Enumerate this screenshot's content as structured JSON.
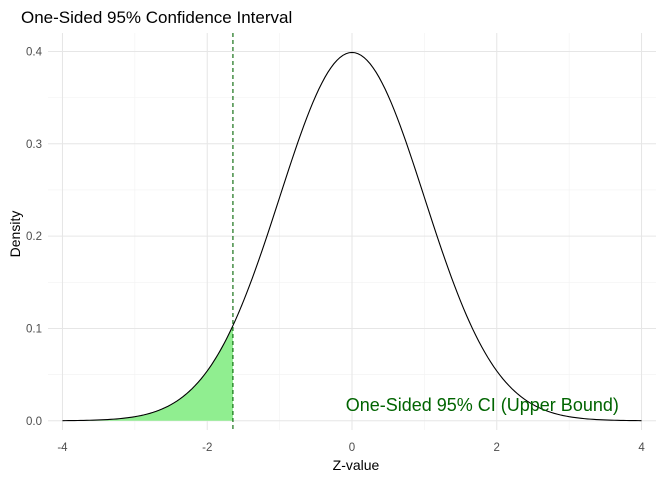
{
  "chart_data": {
    "type": "area",
    "title": "One-Sided 95% Confidence Interval",
    "xlabel": "Z-value",
    "ylabel": "Density",
    "xlim": [
      -4.2,
      4.2
    ],
    "ylim": [
      -0.01,
      0.42
    ],
    "x_ticks": [
      -4,
      -2,
      0,
      2,
      4
    ],
    "y_ticks": [
      0.0,
      0.1,
      0.2,
      0.3,
      0.4
    ],
    "x_tick_labels": [
      "-4",
      "-2",
      "0",
      "2",
      "4"
    ],
    "y_tick_labels": [
      "0.0",
      "0.1",
      "0.2",
      "0.3",
      "0.4"
    ],
    "grid": true,
    "curve": {
      "type": "line",
      "color": "#000000",
      "x": [
        -4.0,
        -3.5,
        -3.0,
        -2.5,
        -2.0,
        -1.645,
        -1.5,
        -1.0,
        -0.5,
        0.0,
        0.5,
        1.0,
        1.5,
        2.0,
        2.5,
        3.0,
        3.5,
        4.0
      ],
      "values": [
        0.0001,
        0.0009,
        0.0044,
        0.0175,
        0.054,
        0.1031,
        0.1295,
        0.242,
        0.3521,
        0.3989,
        0.3521,
        0.242,
        0.1295,
        0.054,
        0.0175,
        0.0044,
        0.0009,
        0.0001
      ]
    },
    "shaded_region": {
      "type": "area",
      "color": "#90ee90",
      "x": [
        -4.0,
        -3.5,
        -3.0,
        -2.5,
        -2.0,
        -1.645
      ],
      "values": [
        0.0001,
        0.0009,
        0.0044,
        0.0175,
        0.054,
        0.1031
      ]
    },
    "critical_value": {
      "x": -1.645,
      "color": "#006400",
      "style": "dashed"
    },
    "annotation": {
      "text": "One-Sided 95% CI (Upper Bound)",
      "x": 1.8,
      "y": 0.017,
      "color": "#006400"
    }
  }
}
